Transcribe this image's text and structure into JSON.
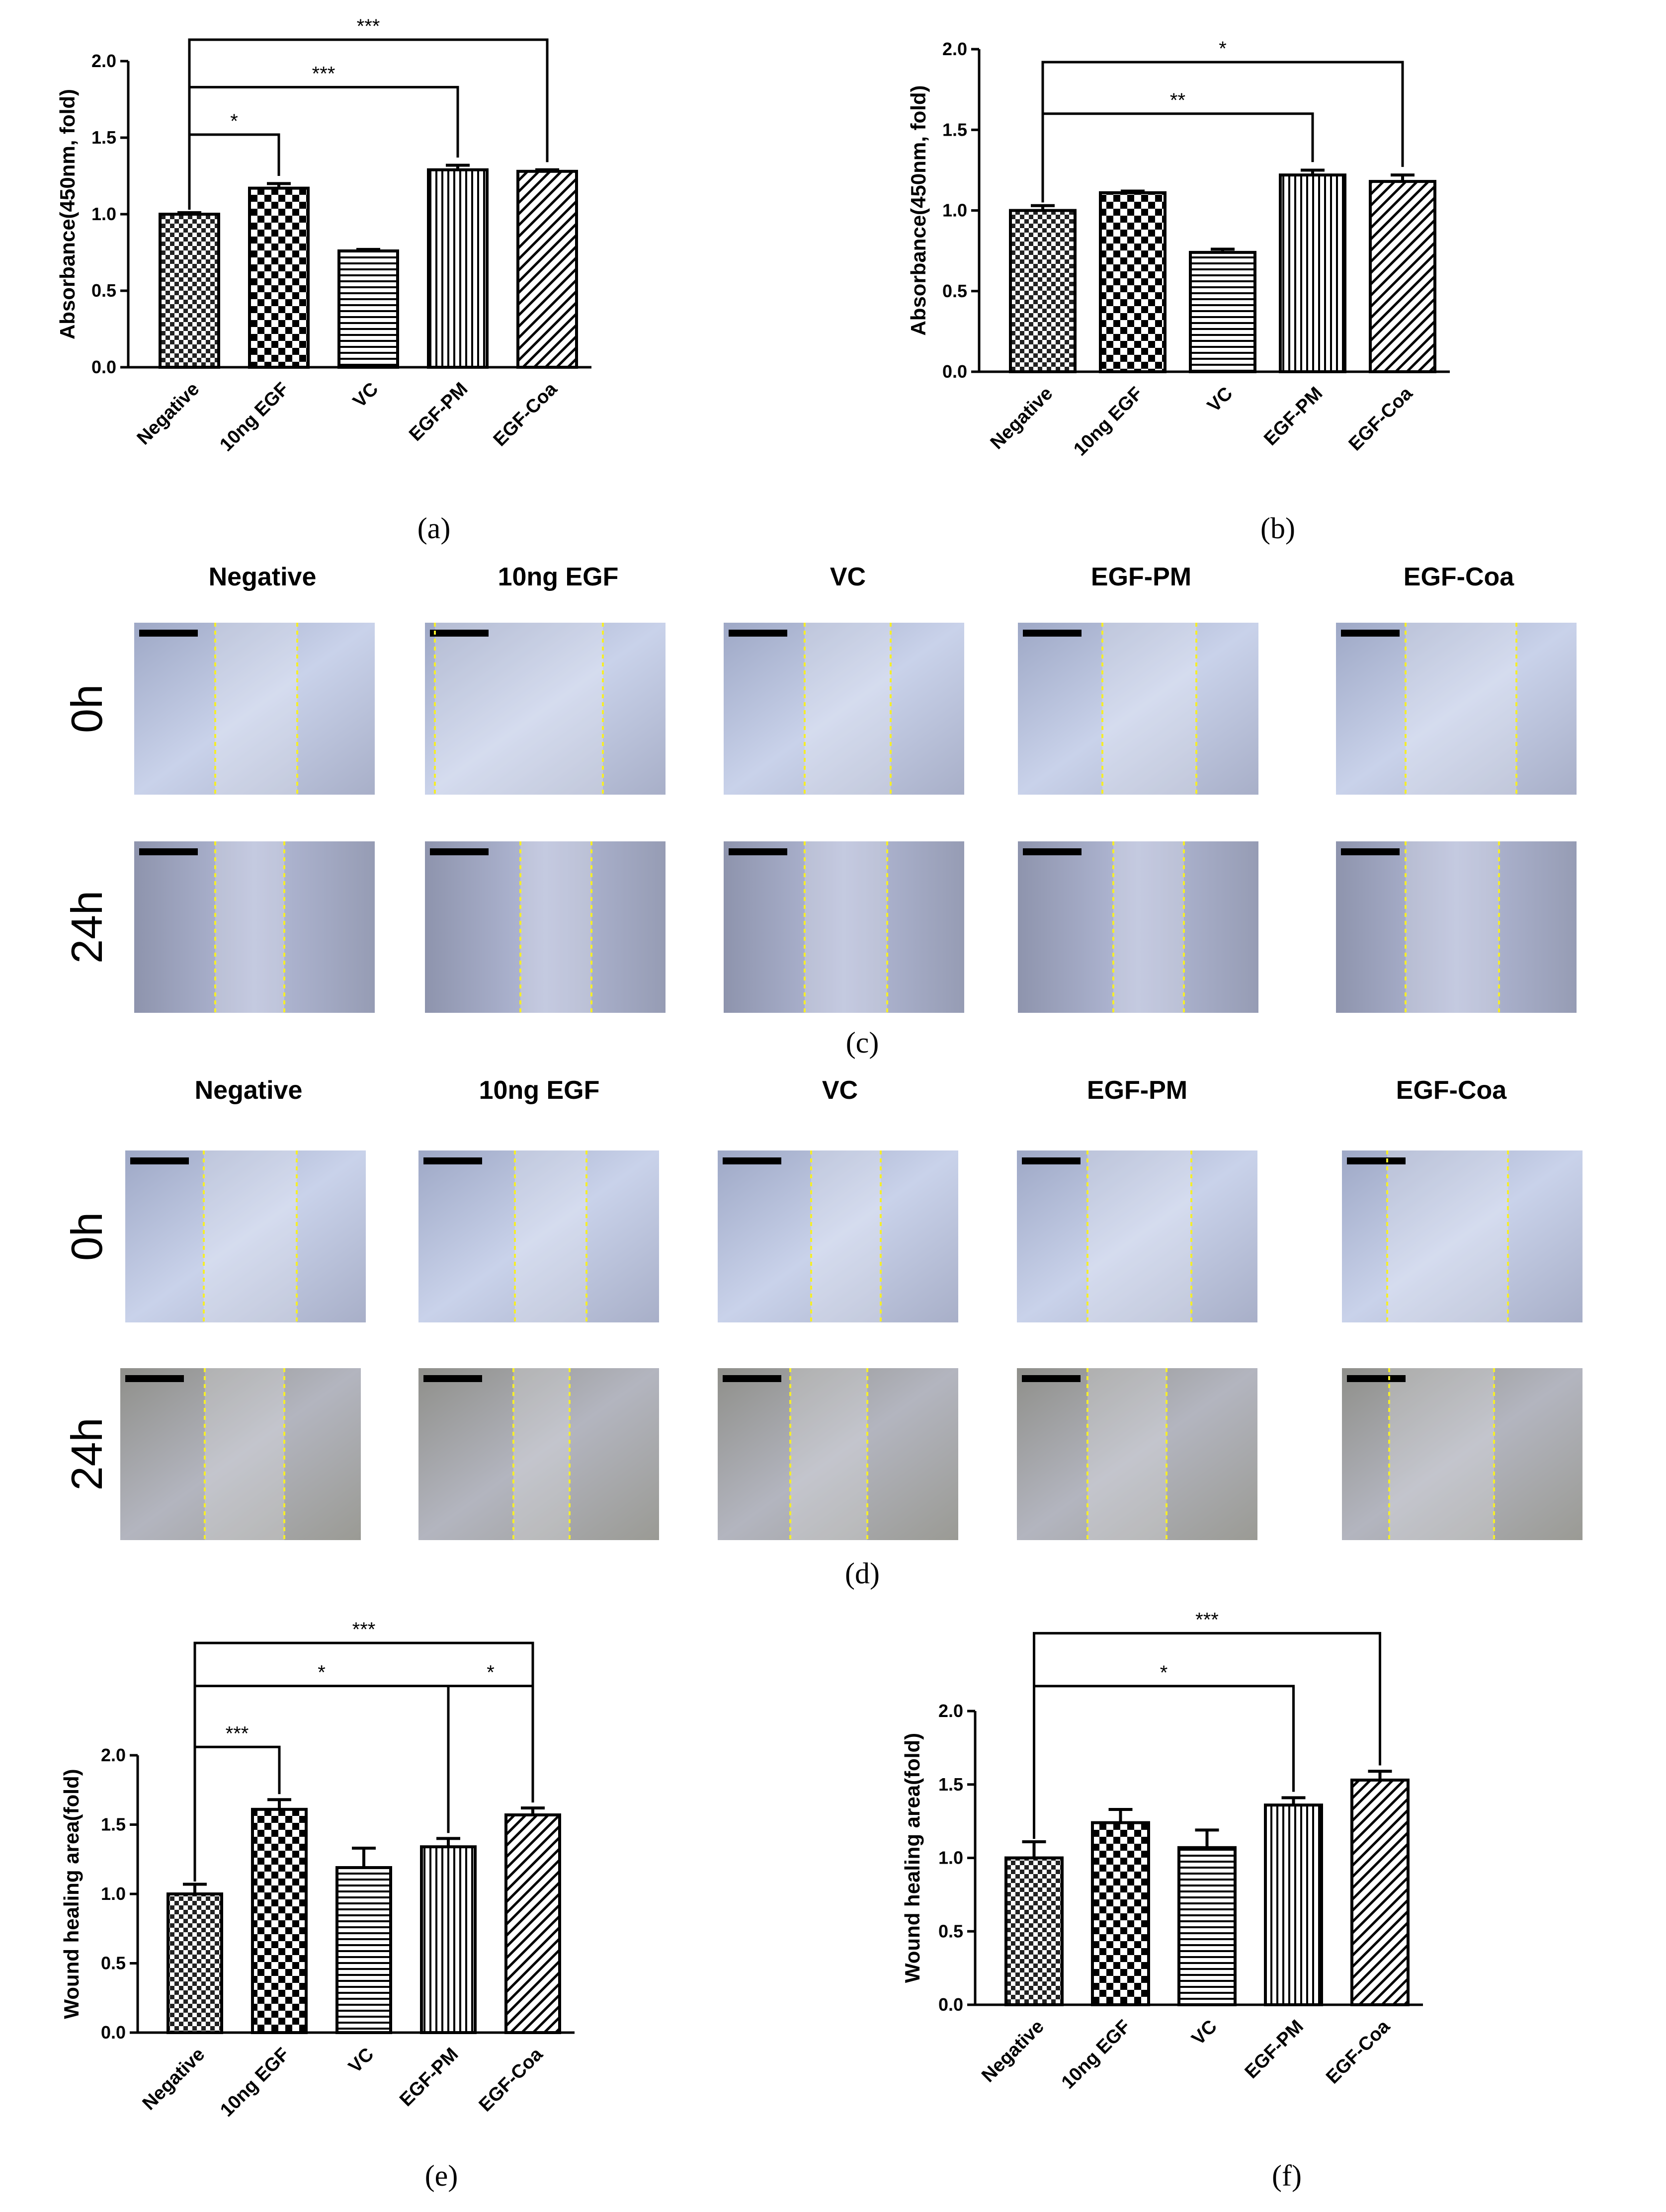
{
  "figure": {
    "panel_labels": [
      "(a)",
      "(b)",
      "(c)",
      "(d)",
      "(e)",
      "(f)"
    ],
    "conditions": [
      "Negative",
      "10ng EGF",
      "VC",
      "EGF-PM",
      "EGF-Coa"
    ],
    "timepoints": [
      "0h",
      "24h"
    ]
  },
  "chart_data": [
    {
      "id": "a",
      "type": "bar",
      "title": "",
      "ylabel": "Absorbance(450nm, fold)",
      "xlabel": "",
      "ylim": [
        0,
        2.0
      ],
      "yticks": [
        "0.0",
        "0.5",
        "1.0",
        "1.5",
        "2.0"
      ],
      "categories": [
        "Negative",
        "10ng EGF",
        "VC",
        "EGF-PM",
        "EGF-Coa"
      ],
      "values": [
        1.0,
        1.17,
        0.76,
        1.29,
        1.28
      ],
      "errors": [
        0.01,
        0.03,
        0.01,
        0.03,
        0.01
      ],
      "patterns": [
        "checker-fine",
        "checker-coarse",
        "hlines",
        "vlines",
        "diag"
      ],
      "significance": [
        {
          "from": 0,
          "to": 1,
          "label": "*",
          "y": 1.52
        },
        {
          "from": 0,
          "to": 3,
          "label": "***",
          "y": 1.83
        },
        {
          "from": 0,
          "to": 4,
          "label": "***",
          "y": 2.14
        }
      ]
    },
    {
      "id": "b",
      "type": "bar",
      "title": "",
      "ylabel": "Absorbance(450nm, fold)",
      "xlabel": "",
      "ylim": [
        0,
        2.0
      ],
      "yticks": [
        "0.0",
        "0.5",
        "1.0",
        "1.5",
        "2.0"
      ],
      "categories": [
        "Negative",
        "10ng EGF",
        "VC",
        "EGF-PM",
        "EGF-Coa"
      ],
      "values": [
        1.0,
        1.11,
        0.74,
        1.22,
        1.18
      ],
      "errors": [
        0.03,
        0.01,
        0.02,
        0.03,
        0.04
      ],
      "patterns": [
        "checker-fine",
        "checker-coarse",
        "hlines",
        "vlines",
        "diag"
      ],
      "significance": [
        {
          "from": 0,
          "to": 3,
          "label": "**",
          "y": 1.6
        },
        {
          "from": 0,
          "to": 4,
          "label": "*",
          "y": 1.92
        }
      ]
    },
    {
      "id": "e",
      "type": "bar",
      "title": "",
      "ylabel": "Wound healing area(fold)",
      "xlabel": "",
      "ylim": [
        0,
        2.0
      ],
      "yticks": [
        "0.0",
        "0.5",
        "1.0",
        "1.5",
        "2.0"
      ],
      "categories": [
        "Negative",
        "10ng EGF",
        "VC",
        "EGF-PM",
        "EGF-Coa"
      ],
      "values": [
        1.0,
        1.61,
        1.19,
        1.34,
        1.57
      ],
      "errors": [
        0.07,
        0.07,
        0.14,
        0.06,
        0.05
      ],
      "patterns": [
        "checker-fine",
        "checker-coarse",
        "hlines",
        "vlines",
        "diag"
      ],
      "significance": [
        {
          "from": 0,
          "to": 1,
          "label": "***",
          "y": 2.06,
          "bottom": 1.72
        },
        {
          "from": 0,
          "to": 3,
          "label": "*",
          "y": 2.5,
          "bottom": 1.44
        },
        {
          "from": 3,
          "to": 4,
          "label": "*",
          "y": 2.5,
          "bottom_from": 1.44,
          "bottom": 1.66
        },
        {
          "from": 0,
          "to": 4,
          "label": "***",
          "y": 2.81,
          "bottom": 1.66
        }
      ]
    },
    {
      "id": "f",
      "type": "bar",
      "title": "",
      "ylabel": "Wound healing area(fold)",
      "xlabel": "",
      "ylim": [
        0,
        2.0
      ],
      "yticks": [
        "0.0",
        "0.5",
        "1.0",
        "1.5",
        "2.0"
      ],
      "categories": [
        "Negative",
        "10ng EGF",
        "VC",
        "EGF-PM",
        "EGF-Coa"
      ],
      "values": [
        1.0,
        1.24,
        1.07,
        1.36,
        1.53
      ],
      "errors": [
        0.11,
        0.09,
        0.12,
        0.05,
        0.06
      ],
      "patterns": [
        "checker-fine",
        "checker-coarse",
        "hlines",
        "vlines",
        "diag"
      ],
      "significance": [
        {
          "from": 0,
          "to": 3,
          "label": "*",
          "y": 2.17,
          "bottom": 1.45
        },
        {
          "from": 0,
          "to": 4,
          "label": "***",
          "y": 2.53,
          "bottom": 1.63
        }
      ]
    }
  ]
}
